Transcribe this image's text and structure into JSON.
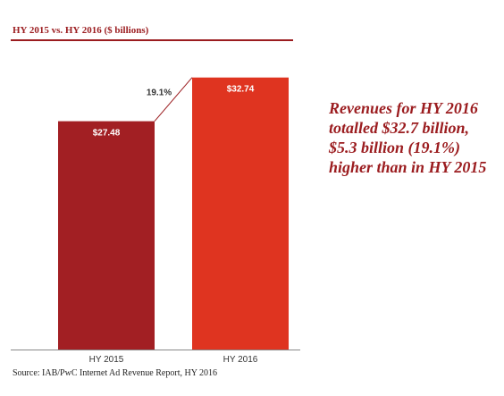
{
  "header": {
    "title": "HY 2015 vs. HY 2016 ($ billions)"
  },
  "callout": {
    "text": "Revenues for HY 2016 totalled $32.7 billion, $5.3 billion (19.1%) higher than in HY 2015"
  },
  "footer": {
    "source": "Source: IAB/PwC Internet Ad Revenue Report, HY 2016"
  },
  "colors": {
    "accent": "#9b1c1f",
    "bar_2015": "#a21f23",
    "bar_2016": "#df3420",
    "connector": "#9b1c1f"
  },
  "chart_data": {
    "type": "bar",
    "title": "HY 2015 vs. HY 2016 ($ billions)",
    "categories": [
      "HY 2015",
      "HY 2016"
    ],
    "values": [
      27.48,
      32.74
    ],
    "value_labels": [
      "$27.48",
      "$32.74"
    ],
    "growth_label": "19.1%",
    "ylim": [
      0,
      34.0
    ],
    "grid": false,
    "legend": "none",
    "xlabel": "",
    "ylabel": ""
  }
}
